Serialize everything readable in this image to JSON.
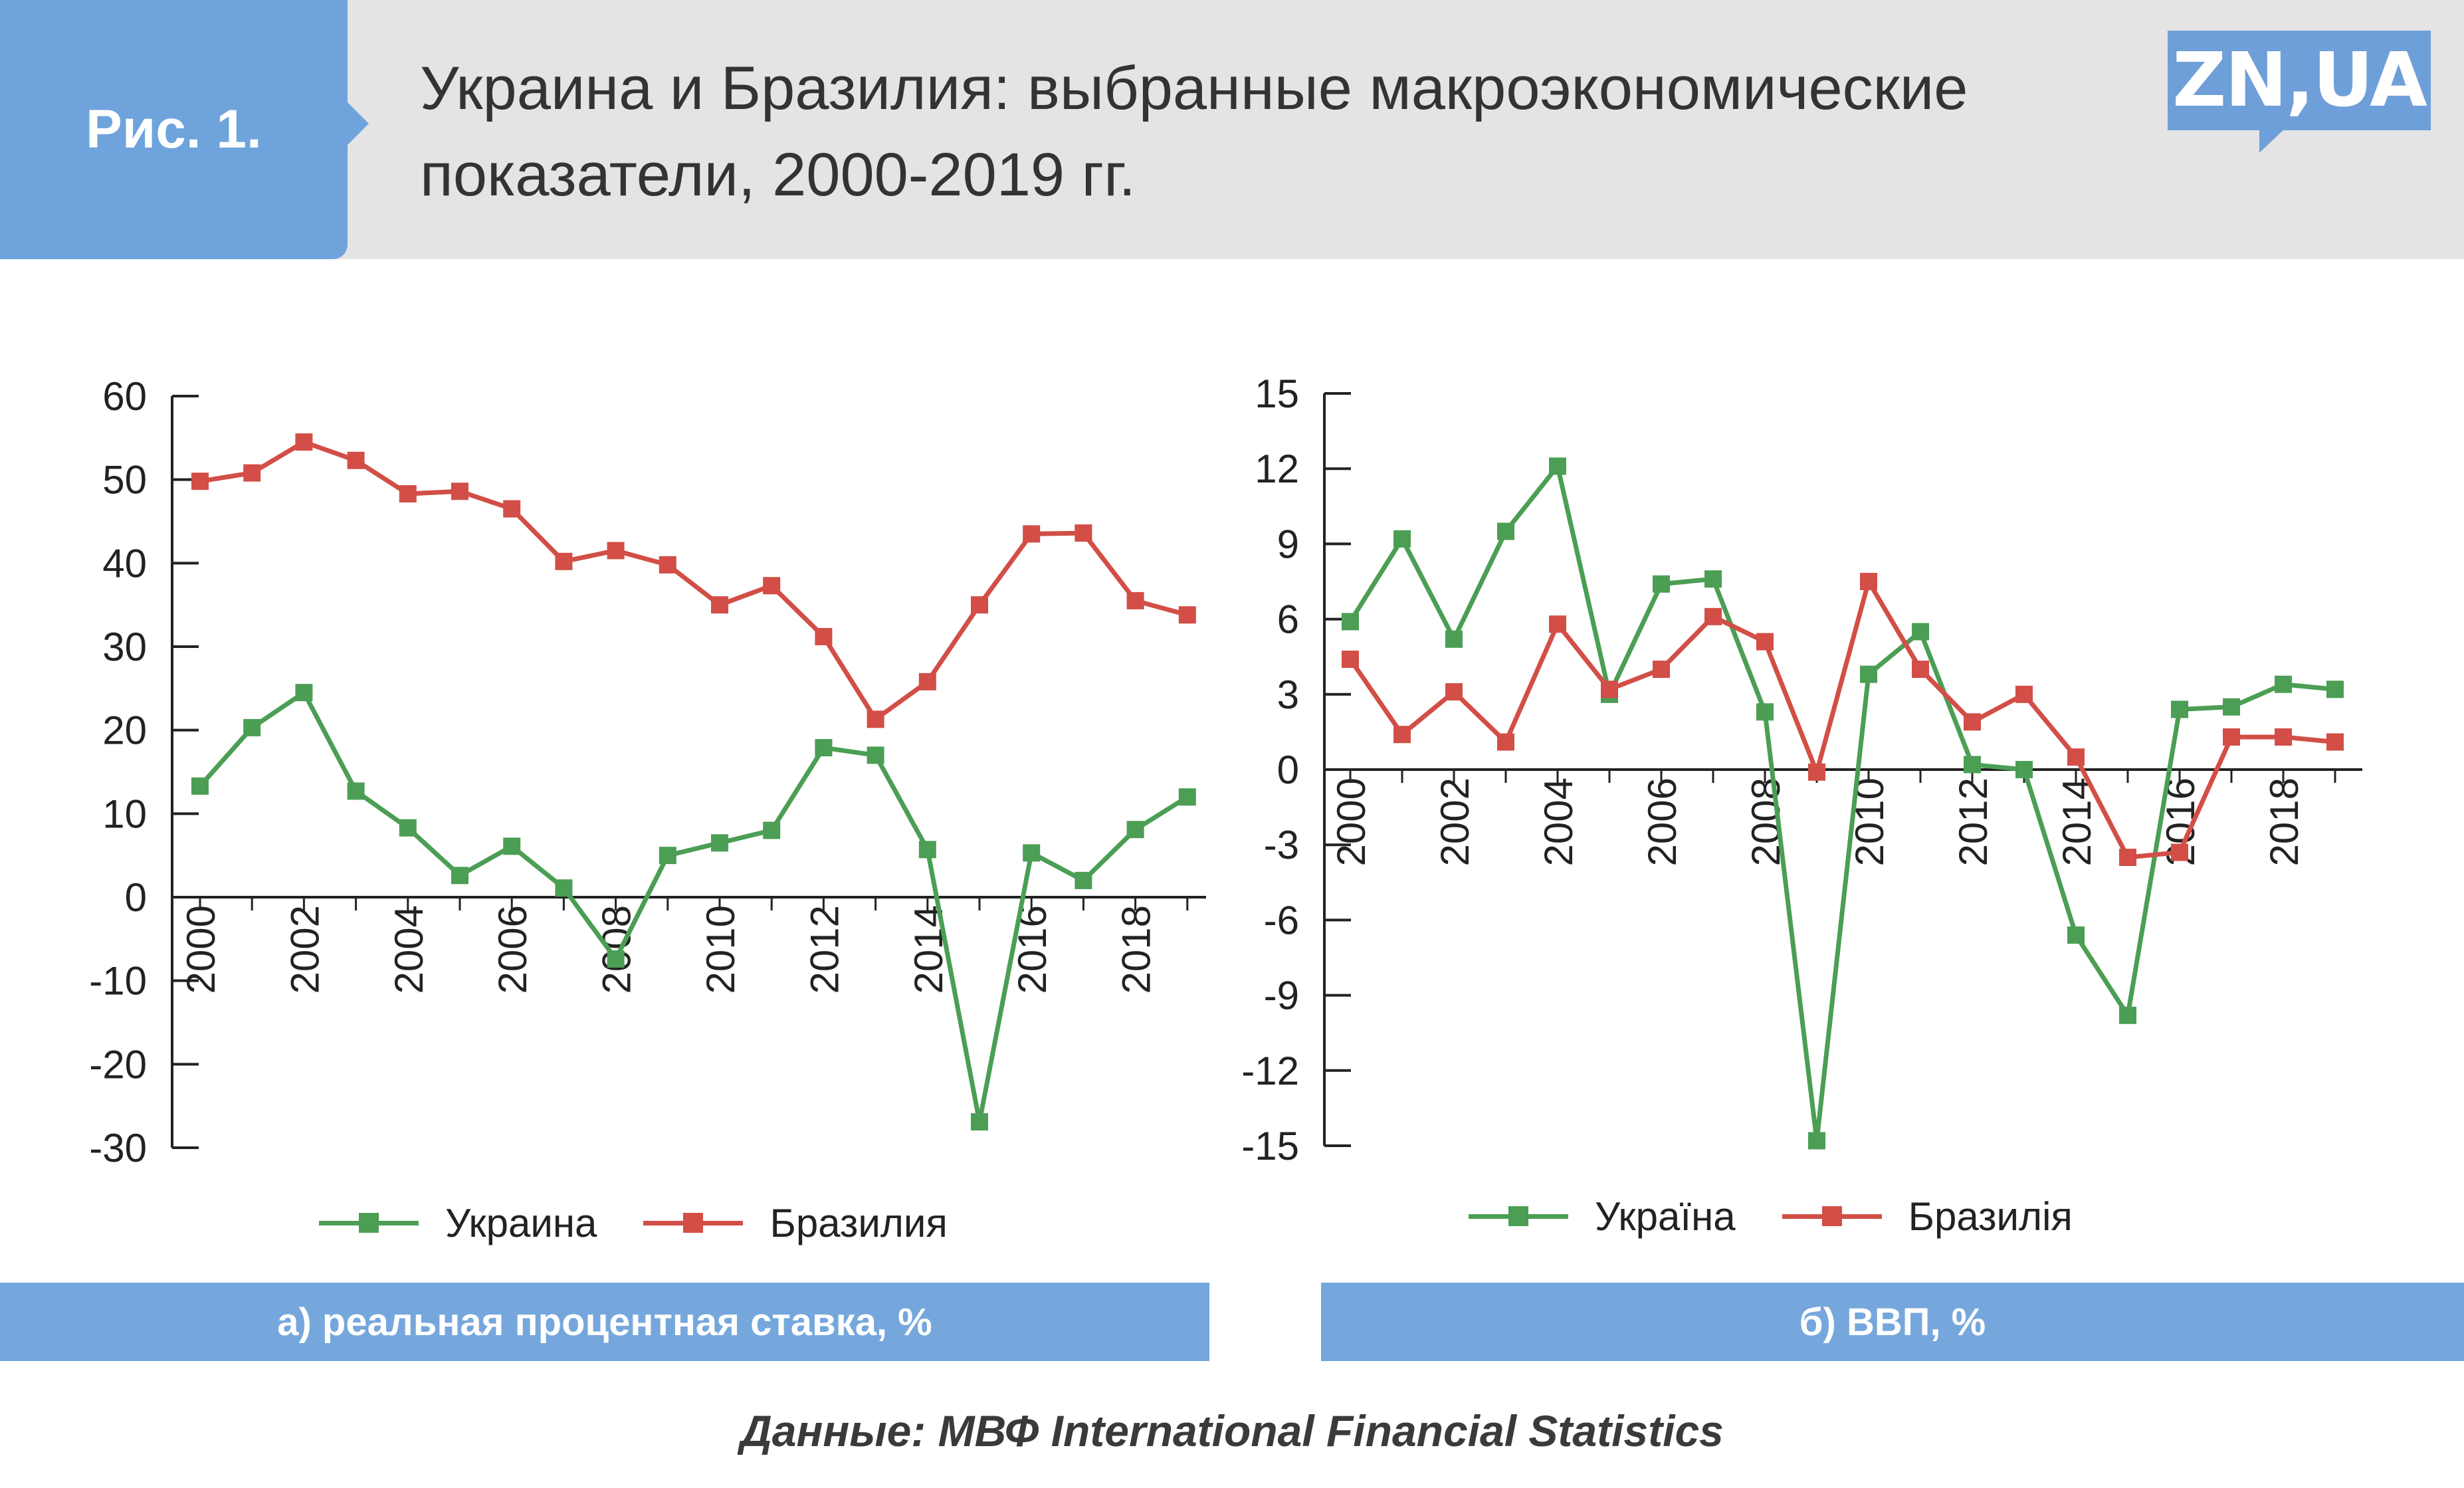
{
  "header": {
    "figure_label": "Рис. 1.",
    "title_line1": "Украина и Бразилия: выбранные макроэкономические",
    "title_line2": "показатели, 2000-2019 гг.",
    "logo": "ZN,UA"
  },
  "colors": {
    "ukraine": "#4b9e54",
    "brazil": "#d24e46",
    "header_bg": "#e4e4e4",
    "accent_blue": "#75a7dc"
  },
  "chart_data": [
    {
      "type": "line",
      "caption": "а) реальная процентная ставка, %",
      "ylim": [
        -30,
        60
      ],
      "yticks": [
        "60",
        "50",
        "40",
        "30",
        "20",
        "10",
        "0",
        "-10",
        "-20",
        "-30"
      ],
      "x": [
        2000,
        2001,
        2002,
        2003,
        2004,
        2005,
        2006,
        2007,
        2008,
        2009,
        2010,
        2011,
        2012,
        2013,
        2014,
        2015,
        2016,
        2017,
        2018,
        2019
      ],
      "xticks": [
        "2000",
        "2002",
        "2004",
        "2006",
        "2008",
        "2010",
        "2012",
        "2014",
        "2016",
        "2018"
      ],
      "legend": [
        "Украина",
        "Бразилия"
      ],
      "series": [
        {
          "name": "Украина",
          "values": [
            13.3,
            20.3,
            24.5,
            12.7,
            8.3,
            2.6,
            6.1,
            1.1,
            -7.4,
            5.0,
            6.5,
            8.0,
            17.9,
            17.0,
            5.7,
            -26.9,
            5.3,
            2.0,
            8.1,
            12.0
          ]
        },
        {
          "name": "Бразилия",
          "values": [
            49.8,
            50.8,
            54.5,
            52.3,
            48.3,
            48.6,
            46.5,
            40.2,
            41.5,
            39.8,
            35.0,
            37.3,
            31.2,
            21.3,
            25.8,
            35.0,
            43.5,
            43.6,
            35.5,
            33.8
          ]
        }
      ]
    },
    {
      "type": "line",
      "caption": "б) ВВП, %",
      "ylim": [
        -15,
        15
      ],
      "yticks": [
        "15",
        "12",
        "9",
        "6",
        "3",
        "0",
        "-3",
        "-6",
        "-9",
        "-12",
        "-15"
      ],
      "x": [
        2000,
        2001,
        2002,
        2003,
        2004,
        2005,
        2006,
        2007,
        2008,
        2009,
        2010,
        2011,
        2012,
        2013,
        2014,
        2015,
        2016,
        2017,
        2018,
        2019
      ],
      "xticks": [
        "2000",
        "2002",
        "2004",
        "2006",
        "2008",
        "2010",
        "2012",
        "2014",
        "2016",
        "2018"
      ],
      "legend": [
        "Україна",
        "Бразилія"
      ],
      "series": [
        {
          "name": "Україна",
          "values": [
            5.9,
            9.2,
            5.2,
            9.5,
            12.1,
            3.0,
            7.4,
            7.6,
            2.3,
            -14.8,
            3.8,
            5.5,
            0.2,
            0.0,
            -6.6,
            -9.8,
            2.4,
            2.5,
            3.4,
            3.2
          ]
        },
        {
          "name": "Бразилія",
          "values": [
            4.4,
            1.4,
            3.1,
            1.1,
            5.8,
            3.2,
            4.0,
            6.1,
            5.1,
            -0.1,
            7.5,
            4.0,
            1.9,
            3.0,
            0.5,
            -3.5,
            -3.3,
            1.3,
            1.3,
            1.1
          ]
        }
      ]
    }
  ],
  "source": "Данные: МВФ International Financial Statistics"
}
